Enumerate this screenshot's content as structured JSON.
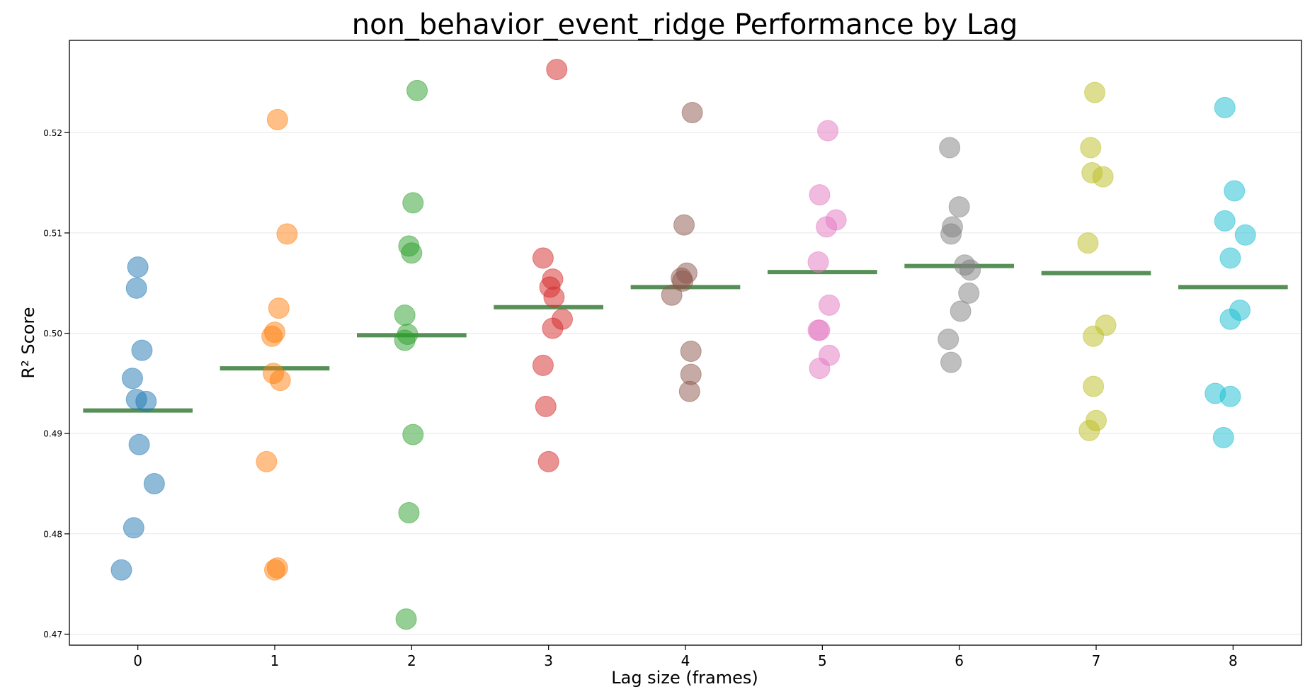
{
  "chart_data": {
    "type": "scatter",
    "title": "non_behavior_event_ridge Performance by Lag",
    "xlabel": "Lag size (frames)",
    "ylabel": "R² Score",
    "xlim": [
      -0.5,
      8.5
    ],
    "ylim": [
      0.4689,
      0.5292
    ],
    "grid": "horizontal",
    "x_ticks": [
      "0",
      "1",
      "2",
      "3",
      "4",
      "5",
      "6",
      "7",
      "8"
    ],
    "y_ticks": [
      "0.47",
      "0.48",
      "0.49",
      "0.50",
      "0.51",
      "0.52"
    ],
    "series": [
      {
        "lag": 0,
        "color": "#1f77b4",
        "mean": 0.4923,
        "points": [
          [
            0.0,
            0.5066
          ],
          [
            -0.01,
            0.5045
          ],
          [
            0.03,
            0.4983
          ],
          [
            -0.04,
            0.4955
          ],
          [
            -0.01,
            0.4934
          ],
          [
            0.06,
            0.4932
          ],
          [
            0.01,
            0.4889
          ],
          [
            0.12,
            0.485
          ],
          [
            -0.03,
            0.4806
          ],
          [
            -0.12,
            0.4764
          ]
        ]
      },
      {
        "lag": 1,
        "color": "#ff7f0e",
        "mean": 0.4965,
        "points": [
          [
            1.02,
            0.5213
          ],
          [
            1.09,
            0.5099
          ],
          [
            1.03,
            0.5025
          ],
          [
            1.0,
            0.5001
          ],
          [
            0.98,
            0.4997
          ],
          [
            0.99,
            0.496
          ],
          [
            1.04,
            0.4953
          ],
          [
            0.94,
            0.4872
          ],
          [
            1.02,
            0.4766
          ],
          [
            1.0,
            0.4764
          ]
        ]
      },
      {
        "lag": 2,
        "color": "#2ca02c",
        "mean": 0.4998,
        "points": [
          [
            2.04,
            0.5242
          ],
          [
            2.01,
            0.513
          ],
          [
            1.98,
            0.5087
          ],
          [
            2.0,
            0.508
          ],
          [
            1.95,
            0.5018
          ],
          [
            1.97,
            0.4999
          ],
          [
            1.95,
            0.4993
          ],
          [
            2.01,
            0.4899
          ],
          [
            1.98,
            0.4821
          ],
          [
            1.96,
            0.4715
          ]
        ]
      },
      {
        "lag": 3,
        "color": "#d62728",
        "mean": 0.5026,
        "points": [
          [
            3.06,
            0.5263
          ],
          [
            2.96,
            0.5075
          ],
          [
            3.03,
            0.5054
          ],
          [
            3.01,
            0.5046
          ],
          [
            3.04,
            0.5036
          ],
          [
            3.1,
            0.5014
          ],
          [
            3.03,
            0.5005
          ],
          [
            2.96,
            0.4968
          ],
          [
            2.98,
            0.4927
          ],
          [
            3.0,
            0.4872
          ]
        ]
      },
      {
        "lag": 4,
        "color": "#8c564b",
        "mean": 0.5046,
        "points": [
          [
            4.05,
            0.522
          ],
          [
            3.99,
            0.5108
          ],
          [
            4.01,
            0.506
          ],
          [
            3.97,
            0.5055
          ],
          [
            3.98,
            0.5052
          ],
          [
            3.9,
            0.5038
          ],
          [
            4.04,
            0.4982
          ],
          [
            4.04,
            0.4959
          ],
          [
            4.03,
            0.4942
          ]
        ]
      },
      {
        "lag": 5,
        "color": "#e377c2",
        "mean": 0.5061,
        "points": [
          [
            5.04,
            0.5202
          ],
          [
            4.98,
            0.5138
          ],
          [
            5.1,
            0.5113
          ],
          [
            5.03,
            0.5106
          ],
          [
            4.97,
            0.5071
          ],
          [
            5.05,
            0.5028
          ],
          [
            4.98,
            0.5003
          ],
          [
            4.97,
            0.5003
          ],
          [
            5.05,
            0.4978
          ],
          [
            4.98,
            0.4965
          ]
        ]
      },
      {
        "lag": 6,
        "color": "#7f7f7f",
        "mean": 0.5067,
        "points": [
          [
            5.93,
            0.5185
          ],
          [
            6.0,
            0.5126
          ],
          [
            5.95,
            0.5106
          ],
          [
            5.94,
            0.5099
          ],
          [
            6.04,
            0.5068
          ],
          [
            6.08,
            0.5063
          ],
          [
            6.07,
            0.504
          ],
          [
            6.01,
            0.5022
          ],
          [
            5.92,
            0.4994
          ],
          [
            5.94,
            0.4971
          ]
        ]
      },
      {
        "lag": 7,
        "color": "#bcbd22",
        "mean": 0.506,
        "points": [
          [
            6.99,
            0.524
          ],
          [
            6.96,
            0.5185
          ],
          [
            6.97,
            0.516
          ],
          [
            7.05,
            0.5156
          ],
          [
            6.94,
            0.509
          ],
          [
            7.07,
            0.5008
          ],
          [
            6.98,
            0.4997
          ],
          [
            6.98,
            0.4947
          ],
          [
            7.0,
            0.4913
          ],
          [
            6.95,
            0.4903
          ]
        ]
      },
      {
        "lag": 8,
        "color": "#17becf",
        "mean": 0.5046,
        "points": [
          [
            7.94,
            0.5225
          ],
          [
            8.01,
            0.5142
          ],
          [
            7.94,
            0.5112
          ],
          [
            8.09,
            0.5098
          ],
          [
            7.98,
            0.5075
          ],
          [
            8.05,
            0.5023
          ],
          [
            7.98,
            0.5014
          ],
          [
            7.87,
            0.494
          ],
          [
            7.98,
            0.4937
          ],
          [
            7.93,
            0.4896
          ]
        ]
      }
    ]
  }
}
